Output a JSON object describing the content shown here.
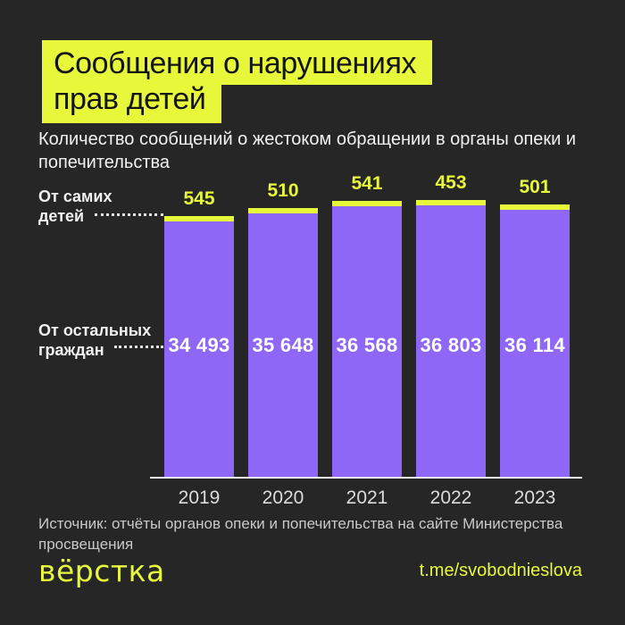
{
  "colors": {
    "background": "#262626",
    "accent_yellow": "#e7f73a",
    "bar_purple": "#8f67f7",
    "text_white": "#f2f2f2",
    "text_gray": "#c9c9c9"
  },
  "title": {
    "line1": "Сообщения о нарушениях",
    "line2": "прав детей"
  },
  "subtitle": "Количество сообщений о жестоком обращении в органы опеки и попечительства",
  "legend": {
    "children": {
      "line1": "От самих",
      "line2": "детей"
    },
    "others": {
      "line1": "От остальных",
      "line2": "граждан"
    }
  },
  "chart_data": {
    "type": "bar",
    "stacked": true,
    "orientation": "vertical",
    "title": "Сообщения о нарушениях прав детей",
    "subtitle": "Количество сообщений о жестоком обращении в органы опеки и попечительства",
    "categories": [
      "2019",
      "2020",
      "2021",
      "2022",
      "2023"
    ],
    "series": [
      {
        "name": "От самих детей",
        "color": "#e7f73a",
        "values": [
          545,
          510,
          541,
          453,
          501
        ]
      },
      {
        "name": "От остальных граждан",
        "color": "#8f67f7",
        "values": [
          34493,
          35648,
          36568,
          36803,
          36114
        ]
      }
    ],
    "totals": [
      35038,
      36158,
      37109,
      37256,
      36615
    ],
    "value_labels_children": [
      "545",
      "510",
      "541",
      "453",
      "501"
    ],
    "value_labels_others": [
      "34 493",
      "35 648",
      "36 568",
      "36 803",
      "36 114"
    ],
    "grid": false,
    "legend_position": "left-annotations"
  },
  "source": "Источник: отчёты органов опеки и попечительства на сайте Министерства просвещения",
  "footer": {
    "logo_text": "вёрстка",
    "link_text": "t.me/svobodnieslova"
  }
}
